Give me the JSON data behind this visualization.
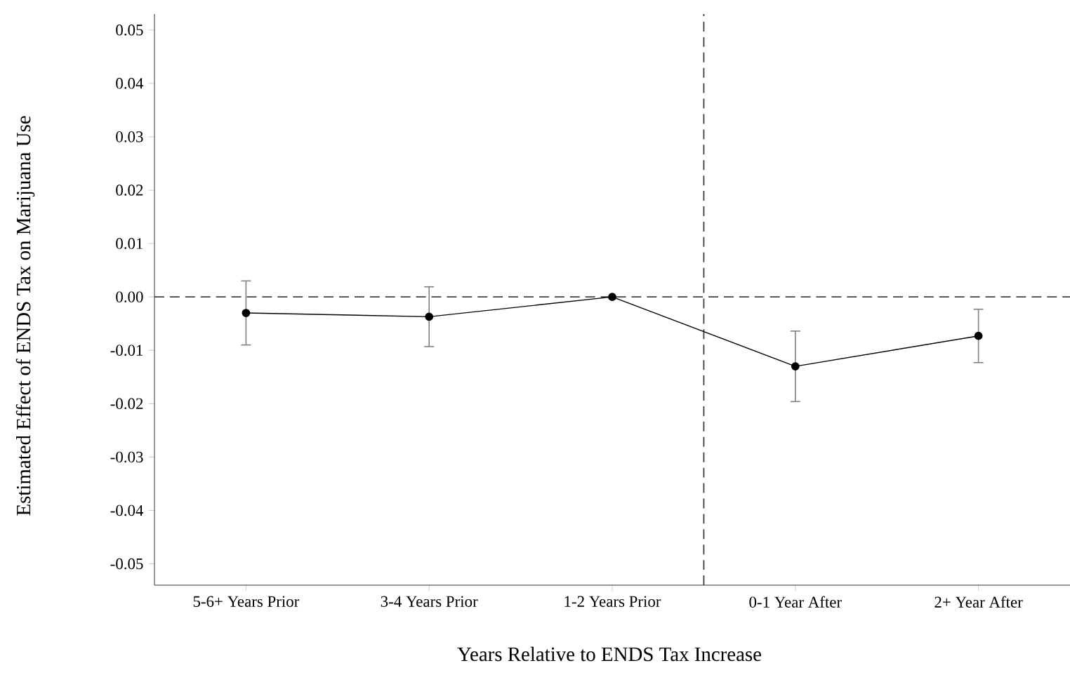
{
  "chart_data": {
    "type": "line",
    "xlabel": "Years Relative to ENDS Tax Increase",
    "ylabel": "Estimated Effect of ENDS Tax on Marijuana Use",
    "categories": [
      "5-6+ Years Prior",
      "3-4 Years Prior",
      "1-2 Years Prior",
      "0-1 Year After",
      "2+ Year After"
    ],
    "series": [
      {
        "color": "#000000",
        "values": [
          -0.003,
          -0.0037,
          0,
          -0.013,
          -0.0073
        ],
        "errors": [
          0.006,
          0.0056,
          null,
          0.0066,
          0.005
        ]
      }
    ],
    "ylim": [
      -0.054,
      0.053
    ],
    "yticks": [
      -0.05,
      -0.04,
      -0.03,
      -0.02,
      -0.01,
      {
        "value": 0,
        "label": "0.00"
      },
      0.01,
      0.02,
      0.03,
      0.04,
      0.05
    ],
    "ref_lines": [
      {
        "axis": "y",
        "value": 0,
        "line_style": "dashed",
        "color": "#404040"
      }
    ],
    "marker": "circle",
    "line_style": "solid",
    "grid": false
  }
}
